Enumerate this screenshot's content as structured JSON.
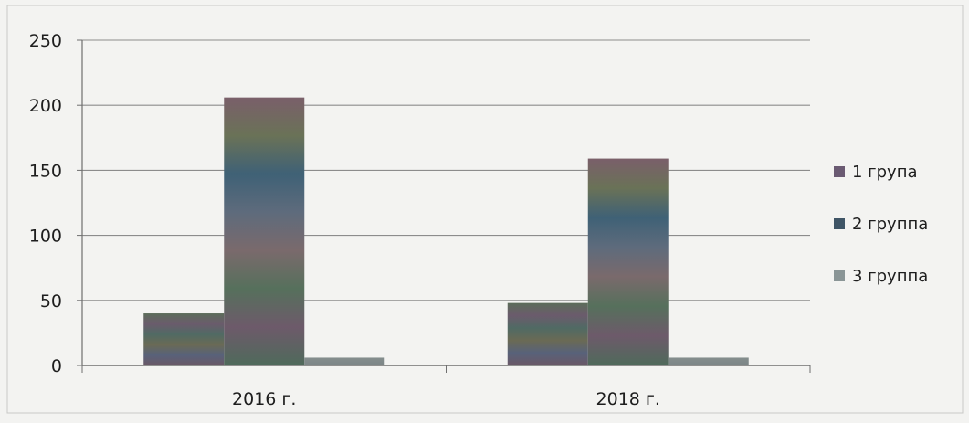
{
  "chart_data": {
    "type": "bar",
    "categories": [
      "2016 г.",
      "2018 г."
    ],
    "series": [
      {
        "name": "1 група",
        "values": [
          40,
          48
        ],
        "color": "#5a6b55"
      },
      {
        "name": "2 группа",
        "values": [
          206,
          159
        ],
        "color": "#4d5a6a"
      },
      {
        "name": "3 группа",
        "values": [
          6,
          6
        ],
        "color": "#7f8a88"
      }
    ],
    "yticks": [
      0,
      50,
      100,
      150,
      200,
      250
    ],
    "ylim": [
      0,
      250
    ],
    "grid": true,
    "legend": "right",
    "title": "",
    "xlabel": "",
    "ylabel": ""
  }
}
